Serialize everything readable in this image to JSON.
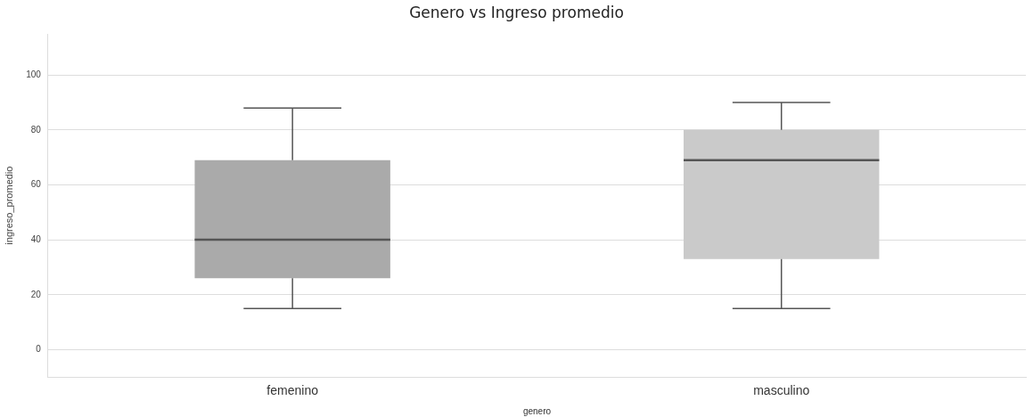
{
  "chart_data": {
    "type": "box",
    "title": "Genero vs Ingreso promedio",
    "xlabel": "genero",
    "ylabel": "ingreso_promedio",
    "categories": [
      "femenino",
      "masculino"
    ],
    "colors": [
      "#aaaaaa",
      "#cacaca"
    ],
    "boxes": [
      {
        "low": 15,
        "q1": 26,
        "median": 40,
        "q3": 69,
        "high": 88
      },
      {
        "low": 15,
        "q1": 33,
        "median": 69,
        "q3": 80,
        "high": 90
      }
    ],
    "ylim": [
      -10,
      115
    ],
    "yticks": [
      0,
      20,
      40,
      60,
      80,
      100
    ],
    "grid": "y"
  }
}
